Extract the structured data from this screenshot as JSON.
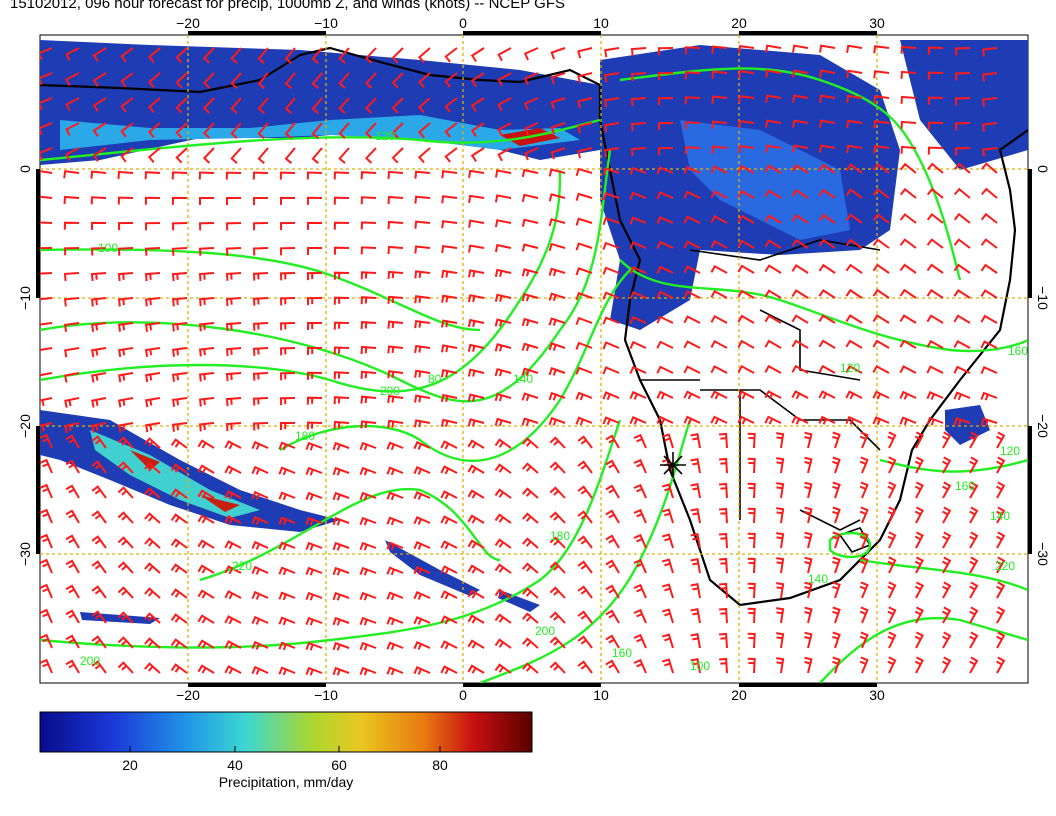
{
  "title": "15102012, 096 hour forecast for precip, 1000mb Z, and winds (knots) -- NCEP GFS",
  "colorbar": {
    "label": "Precipitation, mm/day",
    "ticks": [
      "20",
      "40",
      "60",
      "80"
    ],
    "colors": [
      "#0a0a8c",
      "#1a4ad8",
      "#22a6e6",
      "#40d8c0",
      "#a8d830",
      "#e8c820",
      "#e87a10",
      "#c81010",
      "#5a0000"
    ]
  },
  "axes": {
    "lon_ticks": [
      "−20",
      "−10",
      "0",
      "10",
      "20",
      "30"
    ],
    "lat_ticks": [
      "0",
      "−10",
      "−20",
      "−30"
    ]
  },
  "contour_labels": [
    "120",
    "100",
    "80",
    "140",
    "180",
    "220",
    "200",
    "160",
    "120",
    "140",
    "160",
    "180",
    "200",
    "100",
    "120",
    "160",
    "140",
    "220",
    "200"
  ],
  "colors": {
    "contour": "#22ee22",
    "barb": "#ff1a1a",
    "grid": "#e0b000",
    "coast": "#000000",
    "land_precip": "#1e3cb4"
  }
}
